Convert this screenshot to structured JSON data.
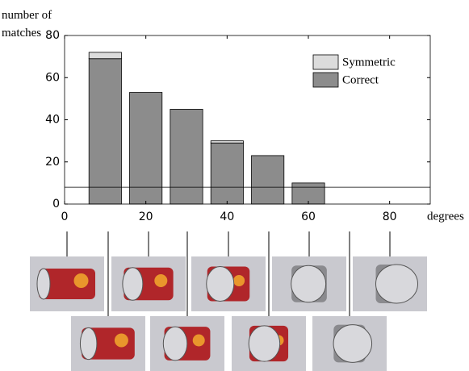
{
  "chart_data": {
    "type": "bar",
    "x_label": "degrees",
    "y_label": "number of matches",
    "x": [
      10,
      20,
      30,
      40,
      50,
      60
    ],
    "series": [
      {
        "name": "Correct",
        "color": "#8c8c8c",
        "values": [
          69,
          53,
          45,
          29,
          23,
          10
        ]
      },
      {
        "name": "Symmetric",
        "color": "#dcdcdc",
        "values": [
          3,
          0,
          0,
          1,
          0,
          0
        ]
      }
    ],
    "stacked": true,
    "bar_width": 8,
    "hline": 8,
    "xlim": [
      0,
      90
    ],
    "xticks": [
      0,
      20,
      40,
      60,
      80
    ],
    "ylim": [
      0,
      80
    ],
    "yticks": [
      0,
      20,
      40,
      60,
      80
    ],
    "legend": "upper right"
  }
}
